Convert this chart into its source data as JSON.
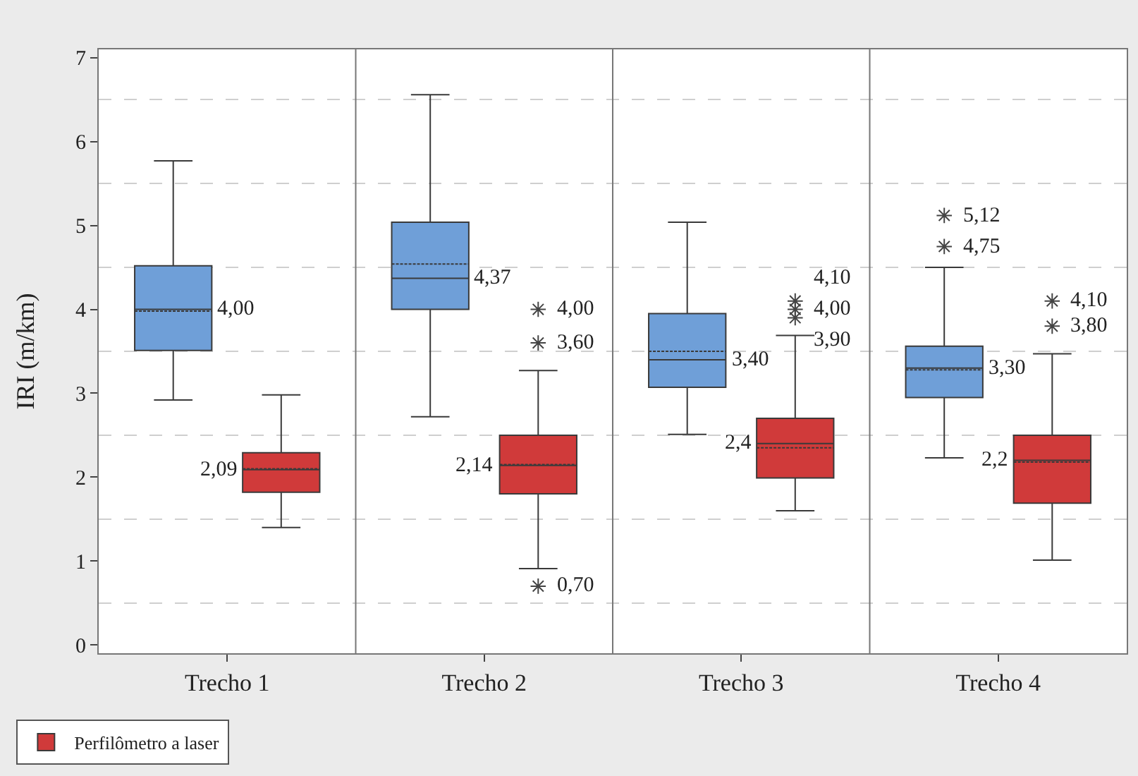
{
  "chart_data": {
    "type": "box",
    "ylabel": "IRI (m/km)",
    "categories": [
      "Trecho 1",
      "Trecho 2",
      "Trecho 3",
      "Trecho 4"
    ],
    "ylim": [
      -0.1,
      7.1
    ],
    "yticks": [
      0,
      1,
      2,
      3,
      4,
      5,
      6,
      7,
      {
        "value": 0.5,
        "label": null
      },
      {
        "value": 1.5,
        "label": null
      },
      {
        "value": 2.5,
        "label": null
      },
      {
        "value": 3.5,
        "label": null
      },
      {
        "value": 4.5,
        "label": null
      },
      {
        "value": 5.5,
        "label": null
      },
      {
        "value": 6.5,
        "label": null
      }
    ],
    "grid": "y",
    "legend": "bottom left",
    "marker": "star",
    "series": [
      {
        "color": "#6f9fd8",
        "boxes": [
          {
            "low": 2.92,
            "q1": 3.51,
            "median": 4.0,
            "q3": 4.52,
            "high": 5.77,
            "mean": 3.98
          },
          {
            "low": 2.72,
            "q1": 4.0,
            "median": 4.37,
            "q3": 5.04,
            "high": 6.56,
            "mean": 4.54
          },
          {
            "low": 2.51,
            "q1": 3.07,
            "median": 3.4,
            "q3": 3.95,
            "high": 5.04,
            "mean": 3.5
          },
          {
            "low": 2.23,
            "q1": 2.95,
            "median": 3.3,
            "q3": 3.56,
            "high": 4.5,
            "mean": 3.28,
            "outliers": [
              5.12,
              4.75
            ]
          }
        ]
      },
      {
        "name": "Perfilômetro a laser",
        "color": "#d03a3a",
        "boxes": [
          {
            "low": 1.4,
            "q1": 1.82,
            "median": 2.09,
            "q3": 2.29,
            "high": 2.98,
            "mean": 2.1
          },
          {
            "low": 0.91,
            "q1": 1.8,
            "median": 2.14,
            "q3": 2.5,
            "high": 3.27,
            "mean": 2.15,
            "outliers": [
              4.0,
              3.6,
              0.7
            ]
          },
          {
            "low": 1.6,
            "q1": 1.99,
            "median": 2.4,
            "q3": 2.7,
            "high": 3.69,
            "mean": 2.35,
            "outliers": [
              4.1,
              4.0,
              3.9
            ]
          },
          {
            "low": 1.01,
            "q1": 1.69,
            "median": 2.2,
            "q3": 2.5,
            "high": 3.47,
            "mean": 2.18,
            "outliers": [
              4.1,
              3.8
            ]
          }
        ]
      }
    ],
    "annotations": [
      "4,00",
      "2,09",
      "4,37",
      "2,14",
      "4,00",
      "3,60",
      "0,70",
      "3,40",
      "2,4",
      "4,10",
      "4,00",
      "3,90",
      "3,30",
      "2,2",
      "5,12",
      "4,75",
      "4,10",
      "3,80"
    ]
  }
}
